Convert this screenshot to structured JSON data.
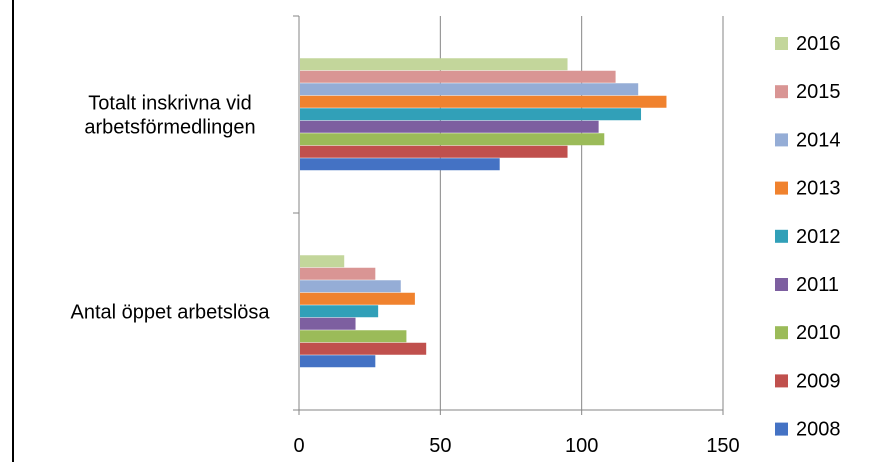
{
  "chart_data": {
    "type": "bar",
    "orientation": "horizontal",
    "title": "",
    "xlabel": "",
    "ylabel": "",
    "xlim": [
      0,
      150
    ],
    "x_ticks": [
      "0",
      "50",
      "100",
      "150"
    ],
    "grid": "vertical",
    "legend_position": "right",
    "categories": [
      {
        "lines": [
          "Totalt inskrivna vid",
          "arbetsförmedlingen"
        ]
      },
      {
        "lines": [
          "Antal öppet arbetslösa"
        ]
      }
    ],
    "series": [
      {
        "name": "2008",
        "color": "#4472C4",
        "values": [
          71,
          27
        ]
      },
      {
        "name": "2009",
        "color": "#C0504D",
        "values": [
          95,
          45
        ]
      },
      {
        "name": "2010",
        "color": "#9BBB59",
        "values": [
          108,
          38
        ]
      },
      {
        "name": "2011",
        "color": "#7D5FA0",
        "values": [
          106,
          20
        ]
      },
      {
        "name": "2012",
        "color": "#31A0B8",
        "values": [
          121,
          28
        ]
      },
      {
        "name": "2013",
        "color": "#F0822E",
        "values": [
          130,
          41
        ]
      },
      {
        "name": "2014",
        "color": "#95ADD6",
        "values": [
          120,
          36
        ]
      },
      {
        "name": "2015",
        "color": "#D99594",
        "values": [
          112,
          27
        ]
      },
      {
        "name": "2016",
        "color": "#C3D69B",
        "values": [
          95,
          16
        ]
      }
    ],
    "legend_order": [
      "2016",
      "2015",
      "2014",
      "2013",
      "2012",
      "2011",
      "2010",
      "2009",
      "2008"
    ]
  }
}
